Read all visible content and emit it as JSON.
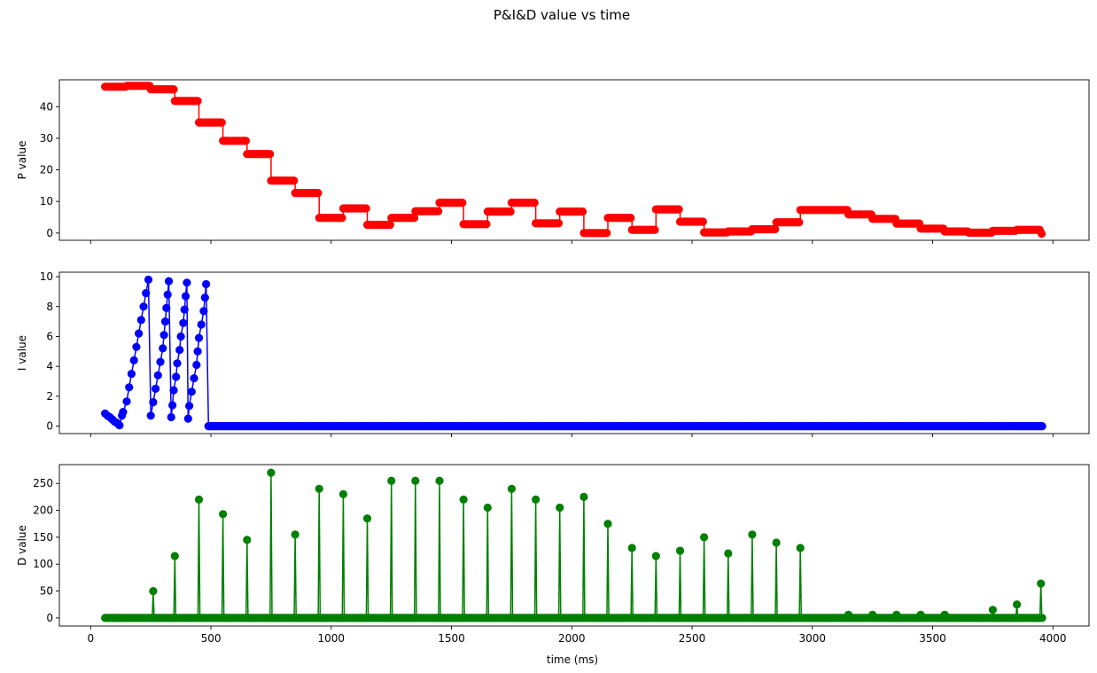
{
  "figure": {
    "title": "P&I&D value vs time",
    "xlabel": "time (ms)"
  },
  "chart_data": [
    {
      "type": "line",
      "name": "p",
      "ylabel": "P value",
      "color": "#ff0000",
      "marker": "circle",
      "xlim": [
        -130,
        4150
      ],
      "ylim": [
        -2.3,
        48.5
      ],
      "xticks": [
        0,
        500,
        1000,
        1500,
        2000,
        2500,
        3000,
        3500,
        4000
      ],
      "yticks": [
        0,
        10,
        20,
        30,
        40
      ],
      "show_xtick_labels": false,
      "steps": [
        [
          60,
          150,
          46.3
        ],
        [
          150,
          250,
          46.6
        ],
        [
          250,
          350,
          45.5
        ],
        [
          350,
          450,
          41.8
        ],
        [
          450,
          550,
          35.0
        ],
        [
          550,
          650,
          29.2
        ],
        [
          650,
          750,
          25.0
        ],
        [
          750,
          850,
          16.6
        ],
        [
          850,
          950,
          12.7
        ],
        [
          950,
          1050,
          4.8
        ],
        [
          1050,
          1150,
          7.8
        ],
        [
          1150,
          1250,
          2.6
        ],
        [
          1250,
          1350,
          4.8
        ],
        [
          1350,
          1450,
          6.9
        ],
        [
          1450,
          1550,
          9.6
        ],
        [
          1550,
          1650,
          2.8
        ],
        [
          1650,
          1750,
          6.8
        ],
        [
          1750,
          1850,
          9.6
        ],
        [
          1850,
          1950,
          3.1
        ],
        [
          1950,
          2050,
          6.8
        ],
        [
          2050,
          2150,
          0.0
        ],
        [
          2150,
          2250,
          4.8
        ],
        [
          2250,
          2350,
          1.0
        ],
        [
          2350,
          2450,
          7.5
        ],
        [
          2450,
          2550,
          3.6
        ],
        [
          2550,
          2650,
          0.2
        ],
        [
          2650,
          2750,
          0.5
        ],
        [
          2750,
          2850,
          1.2
        ],
        [
          2850,
          2950,
          3.4
        ],
        [
          2950,
          3150,
          7.3
        ],
        [
          3150,
          3250,
          5.9
        ],
        [
          3250,
          3350,
          4.5
        ],
        [
          3350,
          3450,
          3.0
        ],
        [
          3450,
          3550,
          1.4
        ],
        [
          3550,
          3650,
          0.5
        ],
        [
          3650,
          3750,
          0.1
        ],
        [
          3750,
          3850,
          0.7
        ],
        [
          3850,
          3950,
          1.0
        ]
      ],
      "end_point": [
        3953,
        -0.2
      ]
    },
    {
      "type": "line",
      "name": "i",
      "ylabel": "I value",
      "color": "#0000ff",
      "marker": "circle",
      "xlim": [
        -130,
        4150
      ],
      "ylim": [
        -0.5,
        10.3
      ],
      "xticks": [
        0,
        500,
        1000,
        1500,
        2000,
        2500,
        3000,
        3500,
        4000
      ],
      "yticks": [
        0,
        2,
        4,
        6,
        8,
        10
      ],
      "show_xtick_labels": false,
      "points": [
        [
          60,
          0.85
        ],
        [
          70,
          0.7
        ],
        [
          80,
          0.6
        ],
        [
          90,
          0.45
        ],
        [
          100,
          0.3
        ],
        [
          110,
          0.2
        ],
        [
          120,
          0.05
        ],
        [
          130,
          0.7
        ],
        [
          135,
          0.95
        ],
        [
          150,
          1.65
        ],
        [
          160,
          2.6
        ],
        [
          170,
          3.5
        ],
        [
          180,
          4.4
        ],
        [
          190,
          5.3
        ],
        [
          200,
          6.2
        ],
        [
          210,
          7.1
        ],
        [
          220,
          8.0
        ],
        [
          230,
          8.9
        ],
        [
          240,
          9.8
        ],
        [
          250,
          0.7
        ],
        [
          260,
          1.6
        ],
        [
          270,
          2.5
        ],
        [
          280,
          3.4
        ],
        [
          290,
          4.3
        ],
        [
          300,
          5.2
        ],
        [
          305,
          6.1
        ],
        [
          310,
          7.0
        ],
        [
          315,
          7.9
        ],
        [
          320,
          8.8
        ],
        [
          325,
          9.7
        ],
        [
          335,
          0.6
        ],
        [
          340,
          1.4
        ],
        [
          345,
          2.4
        ],
        [
          355,
          3.3
        ],
        [
          360,
          4.2
        ],
        [
          370,
          5.1
        ],
        [
          375,
          6.0
        ],
        [
          385,
          6.9
        ],
        [
          390,
          7.8
        ],
        [
          395,
          8.7
        ],
        [
          400,
          9.6
        ],
        [
          405,
          0.5
        ],
        [
          410,
          1.35
        ],
        [
          420,
          2.3
        ],
        [
          430,
          3.2
        ],
        [
          440,
          4.1
        ],
        [
          445,
          5.0
        ],
        [
          450,
          5.9
        ],
        [
          460,
          6.8
        ],
        [
          470,
          7.7
        ],
        [
          475,
          8.6
        ],
        [
          480,
          9.5
        ],
        [
          490,
          0.0
        ],
        [
          3955,
          0.0
        ]
      ]
    },
    {
      "type": "line",
      "name": "d",
      "ylabel": "D value",
      "color": "#008000",
      "marker": "circle",
      "xlim": [
        -130,
        4150
      ],
      "ylim": [
        -15,
        285
      ],
      "xticks": [
        0,
        500,
        1000,
        1500,
        2000,
        2500,
        3000,
        3500,
        4000
      ],
      "yticks": [
        0,
        50,
        100,
        150,
        200,
        250
      ],
      "show_xtick_labels": true,
      "baseline_range": [
        60,
        3955
      ],
      "spikes": [
        [
          260,
          50
        ],
        [
          350,
          115
        ],
        [
          450,
          220
        ],
        [
          550,
          193
        ],
        [
          650,
          145
        ],
        [
          750,
          270
        ],
        [
          850,
          155
        ],
        [
          950,
          240
        ],
        [
          1050,
          230
        ],
        [
          1150,
          185
        ],
        [
          1250,
          255
        ],
        [
          1350,
          255
        ],
        [
          1450,
          255
        ],
        [
          1550,
          220
        ],
        [
          1650,
          205
        ],
        [
          1750,
          240
        ],
        [
          1850,
          220
        ],
        [
          1950,
          205
        ],
        [
          2050,
          225
        ],
        [
          2150,
          175
        ],
        [
          2250,
          130
        ],
        [
          2350,
          115
        ],
        [
          2450,
          125
        ],
        [
          2550,
          150
        ],
        [
          2650,
          120
        ],
        [
          2750,
          155
        ],
        [
          2850,
          140
        ],
        [
          2950,
          130
        ],
        [
          3150,
          6
        ],
        [
          3250,
          6
        ],
        [
          3350,
          6
        ],
        [
          3450,
          6
        ],
        [
          3550,
          6
        ],
        [
          3750,
          15
        ],
        [
          3850,
          25
        ],
        [
          3950,
          64
        ]
      ]
    }
  ]
}
